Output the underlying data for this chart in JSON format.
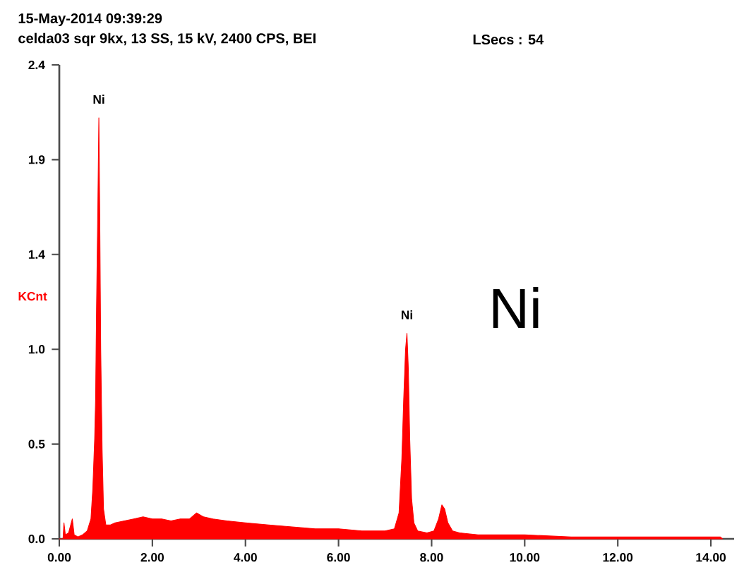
{
  "chart_data": {
    "type": "area",
    "title": "15-May-2014 09:39:29",
    "subtitle": "celda03 sqr 9kx, 13 SS, 15 kV, 2400 CPS, BEI",
    "ylabel": "KCnt",
    "x": [
      0.0,
      0.08,
      0.1,
      0.13,
      0.2,
      0.28,
      0.32,
      0.4,
      0.5,
      0.6,
      0.68,
      0.72,
      0.76,
      0.78,
      0.8,
      0.83,
      0.85,
      0.87,
      0.89,
      0.92,
      0.95,
      1.0,
      1.1,
      1.2,
      1.4,
      1.6,
      1.8,
      2.0,
      2.2,
      2.4,
      2.6,
      2.8,
      2.95,
      3.1,
      3.3,
      3.6,
      4.0,
      4.5,
      5.0,
      5.5,
      6.0,
      6.5,
      7.0,
      7.2,
      7.3,
      7.36,
      7.4,
      7.44,
      7.47,
      7.5,
      7.53,
      7.57,
      7.62,
      7.7,
      7.9,
      8.05,
      8.15,
      8.22,
      8.28,
      8.35,
      8.45,
      8.6,
      9.0,
      10.0,
      11.0,
      12.0,
      13.0,
      14.2,
      14.25
    ],
    "series": [
      {
        "color": "#ff0000",
        "values": [
          0.0,
          0.0,
          0.08,
          0.02,
          0.03,
          0.1,
          0.02,
          0.01,
          0.02,
          0.04,
          0.1,
          0.25,
          0.5,
          0.7,
          1.15,
          1.7,
          2.11,
          1.6,
          0.95,
          0.45,
          0.15,
          0.07,
          0.07,
          0.08,
          0.09,
          0.1,
          0.11,
          0.1,
          0.1,
          0.09,
          0.1,
          0.1,
          0.13,
          0.11,
          0.1,
          0.09,
          0.08,
          0.07,
          0.06,
          0.05,
          0.05,
          0.04,
          0.04,
          0.05,
          0.13,
          0.4,
          0.7,
          0.95,
          1.03,
          0.85,
          0.5,
          0.2,
          0.08,
          0.04,
          0.03,
          0.04,
          0.1,
          0.17,
          0.15,
          0.08,
          0.04,
          0.03,
          0.02,
          0.02,
          0.01,
          0.01,
          0.01,
          0.01,
          0.0
        ]
      }
    ],
    "xlim": [
      0,
      14.5
    ],
    "ylim": [
      0,
      2.375
    ],
    "xticks": [
      {
        "value": 0,
        "label": "0.00"
      },
      {
        "value": 2,
        "label": "2.00"
      },
      {
        "value": 4,
        "label": "4.00"
      },
      {
        "value": 6,
        "label": "6.00"
      },
      {
        "value": 8,
        "label": "8.00"
      },
      {
        "value": 10,
        "label": "10.00"
      },
      {
        "value": 12,
        "label": "12.00"
      },
      {
        "value": 14,
        "label": "14.00"
      }
    ],
    "yticks": [
      {
        "value": 0,
        "label": "0.0"
      },
      {
        "value": 0.475,
        "label": "0.5"
      },
      {
        "value": 0.95,
        "label": "1.0"
      },
      {
        "value": 1.425,
        "label": "1.4"
      },
      {
        "value": 1.9,
        "label": "1.9"
      },
      {
        "value": 2.375,
        "label": "2.4"
      }
    ],
    "annotations": [
      "LSecs : 54",
      "Ni",
      {
        "text": "Ni",
        "x": 0.85,
        "y": 2.11
      },
      {
        "text": "Ni",
        "x": 7.47,
        "y": 1.03
      }
    ]
  }
}
